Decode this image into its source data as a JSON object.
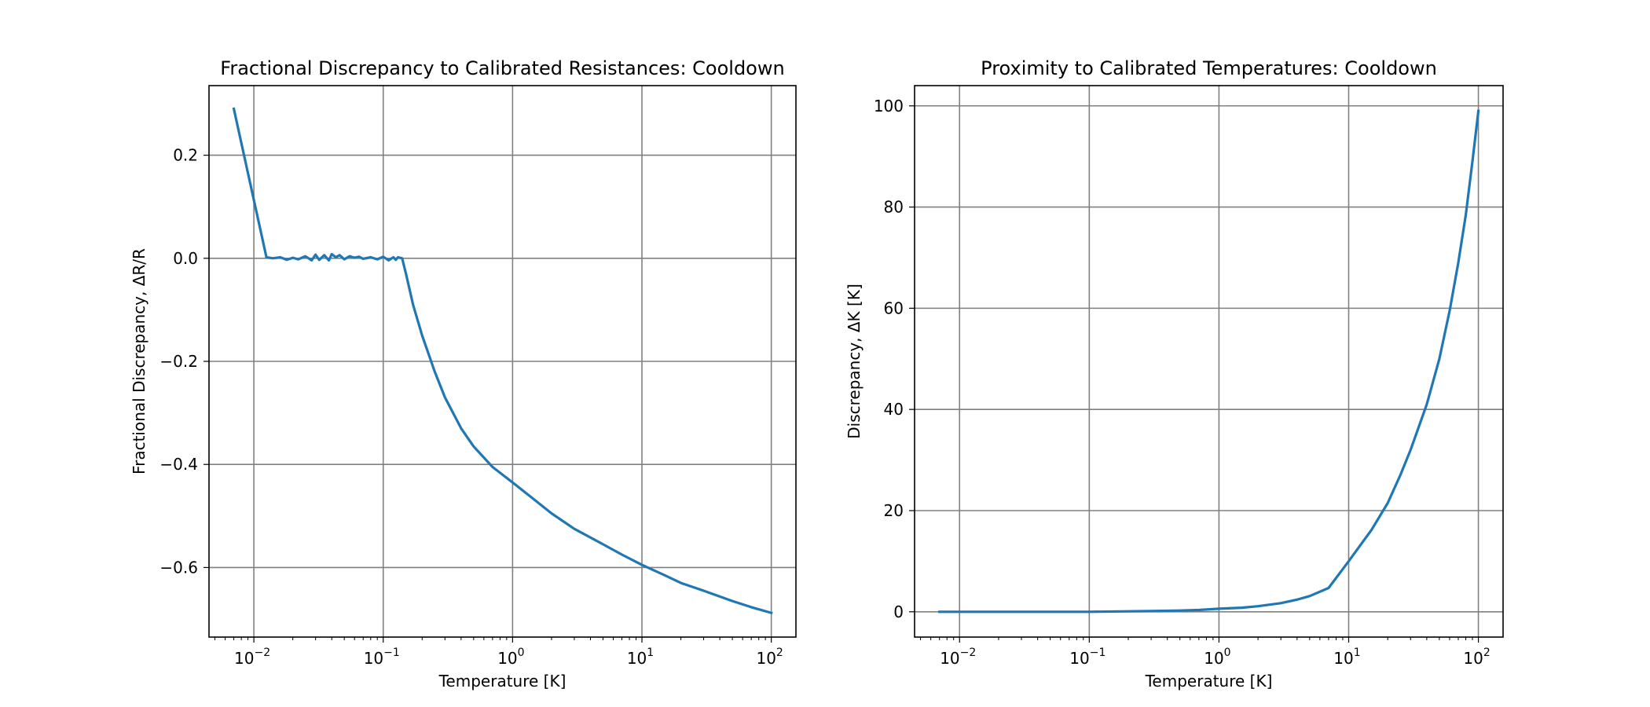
{
  "colors": {
    "line": "#1f77b4",
    "grid": "#808080",
    "axes": "#000000",
    "background": "#ffffff"
  },
  "chart_data": [
    {
      "type": "line",
      "title": "Fractional Discrepancy to Calibrated Resistances: Cooldown",
      "xlabel": "Temperature [K]",
      "ylabel": "Fractional Discrepancy, ΔR/R",
      "xscale": "log",
      "xlim": [
        0.0045,
        155
      ],
      "ylim": [
        -0.735,
        0.335
      ],
      "grid": true,
      "xticks": [
        {
          "value": 0.01,
          "base": "10",
          "exp": "−2"
        },
        {
          "value": 0.1,
          "base": "10",
          "exp": "−1"
        },
        {
          "value": 1,
          "base": "10",
          "exp": "0"
        },
        {
          "value": 10,
          "base": "10",
          "exp": "1"
        },
        {
          "value": 100,
          "base": "10",
          "exp": "2"
        }
      ],
      "yticks": [
        {
          "value": 0.2,
          "label": "0.2"
        },
        {
          "value": 0.0,
          "label": "0.0"
        },
        {
          "value": -0.2,
          "label": "−0.2"
        },
        {
          "value": -0.4,
          "label": "−0.4"
        },
        {
          "value": -0.6,
          "label": "−0.6"
        }
      ],
      "series": [
        {
          "x": [
            0.007,
            0.0125,
            0.014,
            0.016,
            0.018,
            0.02,
            0.022,
            0.025,
            0.028,
            0.03,
            0.032,
            0.035,
            0.038,
            0.04,
            0.043,
            0.046,
            0.05,
            0.055,
            0.06,
            0.065,
            0.07,
            0.08,
            0.09,
            0.1,
            0.11,
            0.12,
            0.125,
            0.13,
            0.14,
            0.15,
            0.17,
            0.2,
            0.25,
            0.3,
            0.4,
            0.5,
            0.7,
            1,
            1.5,
            2,
            3,
            5,
            7,
            10,
            15,
            20,
            30,
            50,
            70,
            100
          ],
          "y": [
            0.29,
            0.002,
            0.0,
            0.002,
            -0.003,
            0.001,
            -0.002,
            0.004,
            -0.004,
            0.007,
            -0.003,
            0.006,
            -0.004,
            0.008,
            0.002,
            0.006,
            -0.002,
            0.004,
            0.001,
            0.003,
            -0.001,
            0.002,
            -0.002,
            0.003,
            -0.004,
            0.002,
            -0.003,
            0.002,
            0.0,
            -0.03,
            -0.09,
            -0.15,
            -0.22,
            -0.27,
            -0.33,
            -0.365,
            -0.405,
            -0.435,
            -0.47,
            -0.495,
            -0.525,
            -0.555,
            -0.575,
            -0.595,
            -0.615,
            -0.63,
            -0.645,
            -0.665,
            -0.677,
            -0.688
          ]
        }
      ]
    },
    {
      "type": "line",
      "title": "Proximity to Calibrated Temperatures: Cooldown",
      "xlabel": "Temperature [K]",
      "ylabel": "Discrepancy, ΔK [K]",
      "xscale": "log",
      "xlim": [
        0.0045,
        155
      ],
      "ylim": [
        -5,
        104
      ],
      "grid": true,
      "xticks": [
        {
          "value": 0.01,
          "base": "10",
          "exp": "−2"
        },
        {
          "value": 0.1,
          "base": "10",
          "exp": "−1"
        },
        {
          "value": 1,
          "base": "10",
          "exp": "0"
        },
        {
          "value": 10,
          "base": "10",
          "exp": "1"
        },
        {
          "value": 100,
          "base": "10",
          "exp": "2"
        }
      ],
      "yticks": [
        {
          "value": 0,
          "label": "0"
        },
        {
          "value": 20,
          "label": "20"
        },
        {
          "value": 40,
          "label": "40"
        },
        {
          "value": 60,
          "label": "60"
        },
        {
          "value": 80,
          "label": "80"
        },
        {
          "value": 100,
          "label": "100"
        }
      ],
      "series": [
        {
          "x": [
            0.007,
            0.01,
            0.02,
            0.05,
            0.1,
            0.2,
            0.3,
            0.5,
            0.7,
            1,
            1.5,
            2,
            3,
            4,
            5,
            7,
            10,
            12,
            15,
            20,
            25,
            30,
            40,
            50,
            60,
            70,
            80,
            90,
            100
          ],
          "y": [
            0.0,
            0.0,
            0.0,
            0.0,
            0.0,
            0.1,
            0.14,
            0.25,
            0.36,
            0.6,
            0.8,
            1.1,
            1.7,
            2.4,
            3.1,
            4.7,
            10.0,
            12.8,
            16.2,
            21.5,
            27.0,
            32.0,
            41.0,
            50.0,
            59.5,
            69.0,
            78.5,
            89.0,
            99.0
          ]
        }
      ]
    }
  ]
}
